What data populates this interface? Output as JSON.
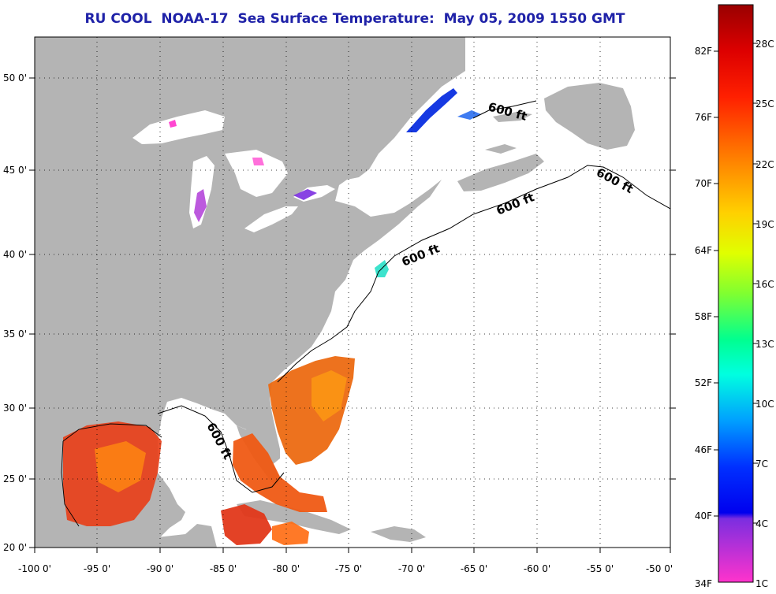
{
  "title": "RU COOL  NOAA-17  Sea Surface Temperature:  May 05, 2009 1550 GMT",
  "map": {
    "lon_ticks": [
      "-100 0'",
      "-95 0'",
      "-90 0'",
      "-85 0'",
      "-80 0'",
      "-75 0'",
      "-70 0'",
      "-65 0'",
      "-60 0'",
      "-55 0'",
      "-50 0'"
    ],
    "lat_ticks": [
      "50 0'",
      "45 0'",
      "40 0'",
      "35 0'",
      "30 0'",
      "25 0'",
      "20 0'"
    ],
    "contour_label": "600 ft",
    "colors": {
      "land": "#b4b4b4",
      "water": "#ffffff"
    }
  },
  "colorbar": {
    "fahrenheit": [
      "82F",
      "76F",
      "70F",
      "64F",
      "58F",
      "52F",
      "46F",
      "40F",
      "34F"
    ],
    "celsius": [
      "28C",
      "25C",
      "22C",
      "19C",
      "16C",
      "13C",
      "10C",
      "7C",
      "4C",
      "1C"
    ],
    "colors": [
      "#990000",
      "#ff0000",
      "#ff7a00",
      "#ffd000",
      "#c8ff00",
      "#40ff40",
      "#00ffd0",
      "#00b0ff",
      "#0050ff",
      "#0000ff",
      "#7b2ee0",
      "#ff33cc"
    ]
  }
}
